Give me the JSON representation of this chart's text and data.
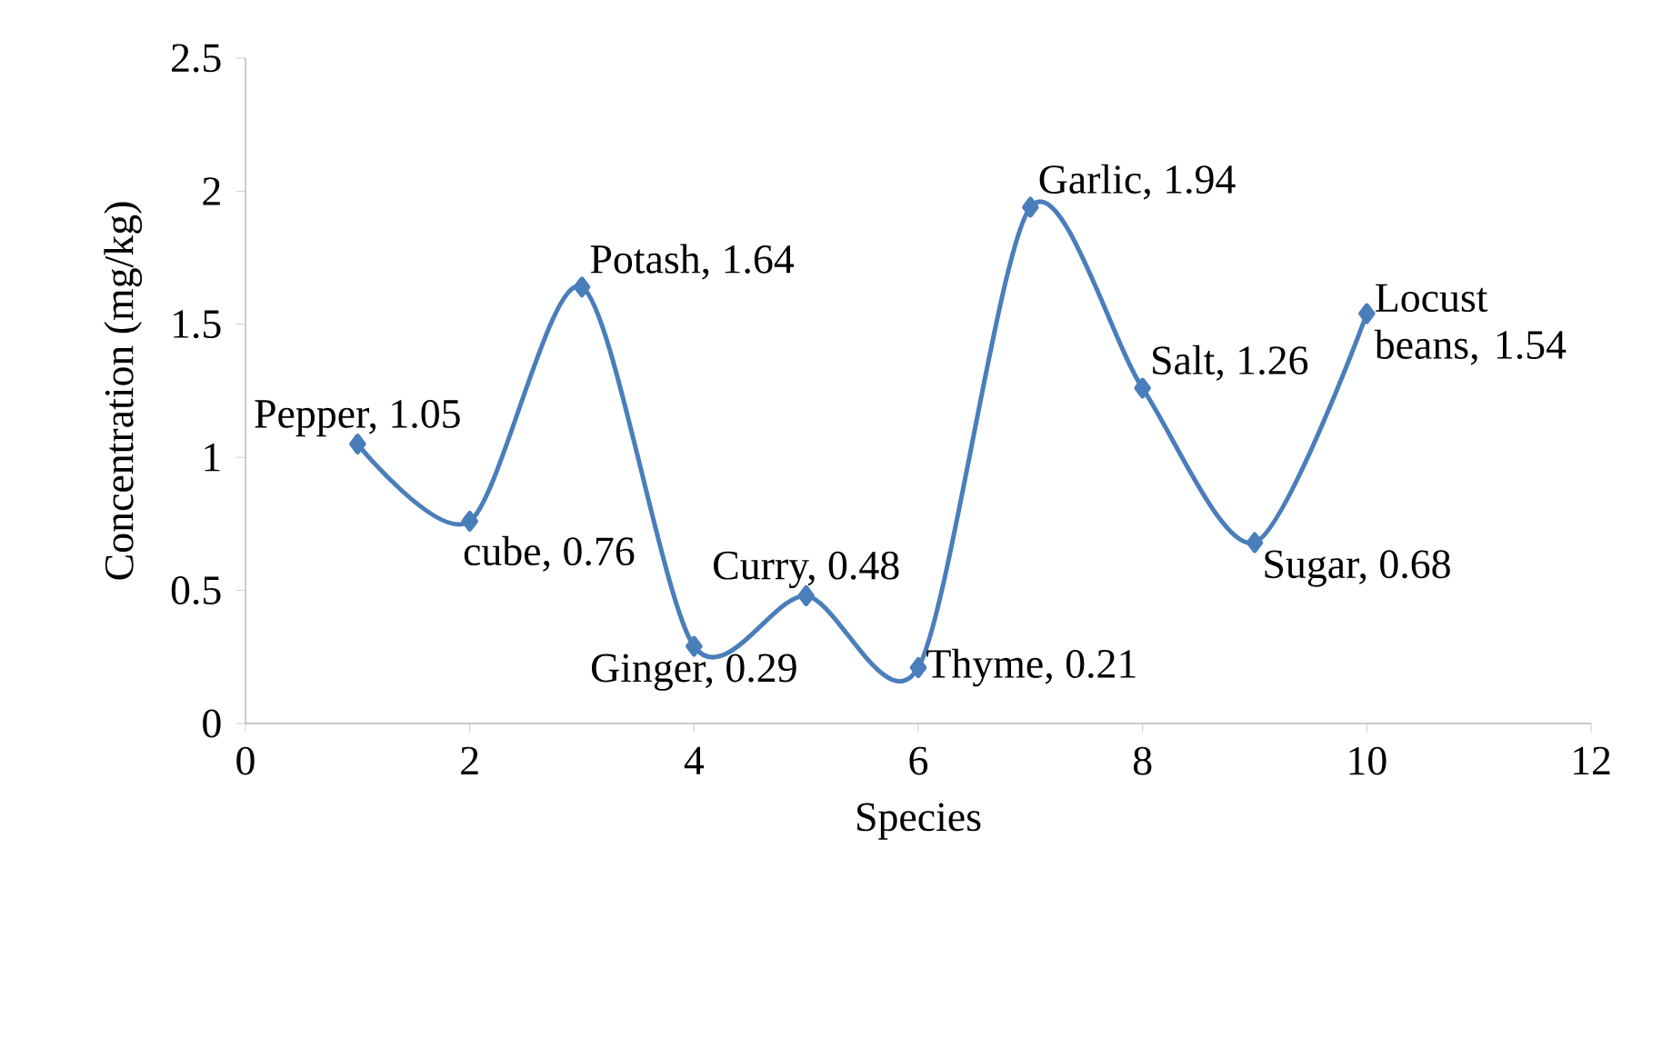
{
  "chart_data": {
    "type": "line",
    "xlabel": "Species",
    "ylabel": "Concentration (mg/kg)",
    "x": [
      1,
      2,
      3,
      4,
      5,
      6,
      7,
      8,
      9,
      10
    ],
    "values": [
      1.05,
      0.76,
      1.64,
      0.29,
      0.48,
      0.21,
      1.94,
      1.26,
      0.68,
      1.54
    ],
    "value_labels": [
      "Pepper, 1.05",
      "cube, 0.76",
      "Potash, 1.64",
      "Ginger, 0.29",
      "Curry, 0.48",
      "Thyme, 0.21",
      "Garlic, 1.94",
      "Salt, 1.26",
      "Sugar, 0.68",
      "Locust beans, 1.54"
    ],
    "color": "#4a7ebb",
    "marker": "diamond",
    "xlim": [
      0,
      12
    ],
    "xticks": [
      0,
      2,
      4,
      6,
      8,
      10,
      12
    ],
    "ylim": [
      0,
      2.5
    ],
    "yticks": [
      0,
      0.5,
      1,
      1.5,
      2,
      2.5
    ]
  }
}
